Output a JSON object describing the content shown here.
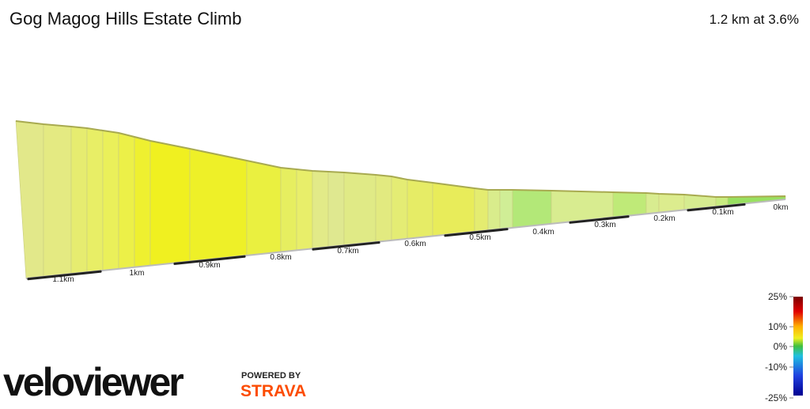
{
  "chart_data": {
    "type": "elevation-profile",
    "title": "Gog Magog Hills Estate Climb",
    "subtitle": "1.2 km at 3.6%",
    "xticks": [
      {
        "value": 1.1,
        "label": "1.1km"
      },
      {
        "value": 1,
        "label": "1km"
      },
      {
        "value": 0.9,
        "label": "0.9km"
      },
      {
        "value": 0.8,
        "label": "0.8km"
      },
      {
        "value": 0.7,
        "label": "0.7km"
      },
      {
        "value": 0.6,
        "label": "0.6km"
      },
      {
        "value": 0.5,
        "label": "0.5km"
      },
      {
        "value": 0.4,
        "label": "0.4km"
      },
      {
        "value": 0.3,
        "label": "0.3km"
      },
      {
        "value": 0.2,
        "label": "0.2km"
      },
      {
        "value": 0.1,
        "label": "0.1km"
      },
      {
        "value": 0,
        "label": "0km"
      }
    ],
    "legend_ticks": [
      {
        "value": 25,
        "label": "25%"
      },
      {
        "value": 10,
        "label": "10%"
      },
      {
        "value": 0,
        "label": "0%"
      },
      {
        "value": -10,
        "label": "-10%"
      },
      {
        "value": -25,
        "label": "-25%"
      }
    ],
    "brand": {
      "name": "veloviewer",
      "powered": "POWERED BY",
      "partner": "STRAVA"
    }
  }
}
